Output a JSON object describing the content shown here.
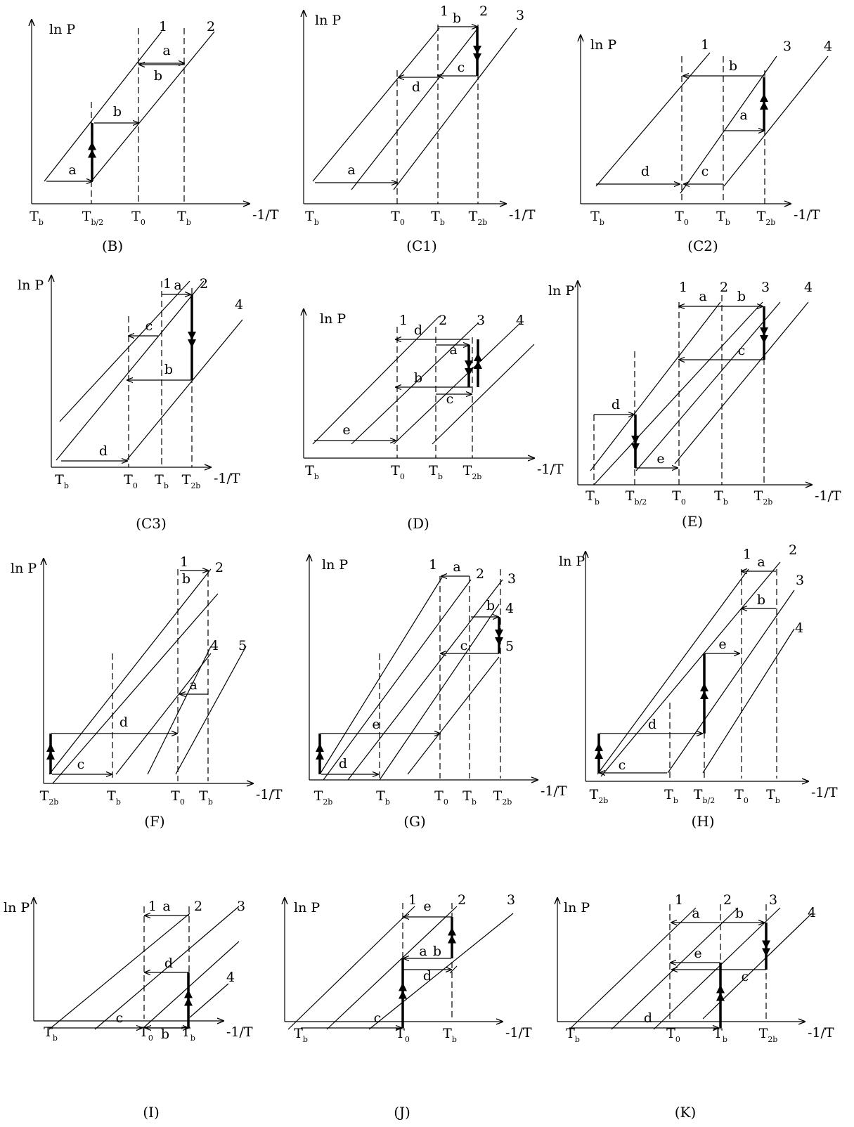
{
  "axis": {
    "y_label": "ln P",
    "x_label": "-1/T"
  },
  "panels": [
    {
      "id": "B",
      "caption": "(B)",
      "ticks": [
        {
          "main": "T",
          "sub": "b"
        },
        {
          "main": "T",
          "sub": "b/2"
        },
        {
          "main": "T",
          "sub": "0"
        },
        {
          "main": "T",
          "sub": "b"
        }
      ],
      "line_labels": [
        "1",
        "2"
      ],
      "arrow_labels": [
        "a",
        "b",
        "b",
        "a"
      ]
    },
    {
      "id": "C1",
      "caption": "(C1)",
      "ticks": [
        {
          "main": "T",
          "sub": "b"
        },
        {
          "main": "T",
          "sub": "0"
        },
        {
          "main": "T",
          "sub": "b"
        },
        {
          "main": "T",
          "sub": "2b"
        }
      ],
      "line_labels": [
        "1",
        "2",
        "3"
      ],
      "arrow_labels": [
        "a",
        "b",
        "c",
        "d"
      ]
    },
    {
      "id": "C2",
      "caption": "(C2)",
      "ticks": [
        {
          "main": "T",
          "sub": "b"
        },
        {
          "main": "T",
          "sub": "0"
        },
        {
          "main": "T",
          "sub": "b"
        },
        {
          "main": "T",
          "sub": "2b"
        }
      ],
      "line_labels": [
        "1",
        "3",
        "4"
      ],
      "arrow_labels": [
        "b",
        "a",
        "c",
        "d"
      ]
    },
    {
      "id": "C3",
      "caption": "(C3)",
      "ticks": [
        {
          "main": "T",
          "sub": "b"
        },
        {
          "main": "T",
          "sub": "0"
        },
        {
          "main": "T",
          "sub": "b"
        },
        {
          "main": "T",
          "sub": "2b"
        }
      ],
      "line_labels": [
        "1",
        "2",
        "4"
      ],
      "arrow_labels": [
        "a",
        "c",
        "b",
        "d"
      ]
    },
    {
      "id": "D",
      "caption": "(D)",
      "ticks": [
        {
          "main": "T",
          "sub": "b"
        },
        {
          "main": "T",
          "sub": "0"
        },
        {
          "main": "T",
          "sub": "b"
        },
        {
          "main": "T",
          "sub": "2b"
        }
      ],
      "line_labels": [
        "1",
        "2",
        "3",
        "4"
      ],
      "arrow_labels": [
        "d",
        "a",
        "b",
        "c",
        "e"
      ]
    },
    {
      "id": "E",
      "caption": "(E)",
      "ticks": [
        {
          "main": "T",
          "sub": "b"
        },
        {
          "main": "T",
          "sub": "b/2"
        },
        {
          "main": "T",
          "sub": "0"
        },
        {
          "main": "T",
          "sub": "b"
        },
        {
          "main": "T",
          "sub": "2b"
        }
      ],
      "line_labels": [
        "1",
        "2",
        "3",
        "4"
      ],
      "arrow_labels": [
        "a",
        "b",
        "c",
        "d",
        "e"
      ]
    },
    {
      "id": "F",
      "caption": "(F)",
      "ticks": [
        {
          "main": "T",
          "sub": "2b"
        },
        {
          "main": "T",
          "sub": "b"
        },
        {
          "main": "T",
          "sub": "0"
        },
        {
          "main": "T",
          "sub": "b"
        }
      ],
      "line_labels": [
        "1",
        "2",
        "4",
        "5"
      ],
      "arrow_labels": [
        "b",
        "a",
        "d",
        "c"
      ]
    },
    {
      "id": "G",
      "caption": "(G)",
      "ticks": [
        {
          "main": "T",
          "sub": "2b"
        },
        {
          "main": "T",
          "sub": "b"
        },
        {
          "main": "T",
          "sub": "0"
        },
        {
          "main": "T",
          "sub": "b"
        },
        {
          "main": "T",
          "sub": "2b"
        }
      ],
      "line_labels": [
        "1",
        "2",
        "3",
        "4",
        "5"
      ],
      "arrow_labels": [
        "a",
        "b",
        "c",
        "e",
        "d"
      ]
    },
    {
      "id": "H",
      "caption": "(H)",
      "ticks": [
        {
          "main": "T",
          "sub": "2b"
        },
        {
          "main": "T",
          "sub": "b"
        },
        {
          "main": "T",
          "sub": "b/2"
        },
        {
          "main": "T",
          "sub": "0"
        },
        {
          "main": "T",
          "sub": "b"
        }
      ],
      "line_labels": [
        "1",
        "2",
        "3",
        "4"
      ],
      "arrow_labels": [
        "a",
        "b",
        "e",
        "d",
        "c"
      ]
    },
    {
      "id": "I",
      "caption": "(I)",
      "ticks": [
        {
          "main": "T",
          "sub": "b"
        },
        {
          "main": "T",
          "sub": "0"
        },
        {
          "main": "T",
          "sub": "b"
        }
      ],
      "line_labels": [
        "1",
        "2",
        "3",
        "4"
      ],
      "arrow_labels": [
        "a",
        "d",
        "c",
        "b"
      ]
    },
    {
      "id": "J",
      "caption": "(J)",
      "ticks": [
        {
          "main": "T",
          "sub": "b"
        },
        {
          "main": "T",
          "sub": "0"
        },
        {
          "main": "T",
          "sub": "b"
        }
      ],
      "line_labels": [
        "1",
        "2",
        "3"
      ],
      "arrow_labels": [
        "e",
        "a",
        "b",
        "d",
        "c"
      ]
    },
    {
      "id": "K",
      "caption": "(K)",
      "ticks": [
        {
          "main": "T",
          "sub": "b"
        },
        {
          "main": "T",
          "sub": "0"
        },
        {
          "main": "T",
          "sub": "b"
        },
        {
          "main": "T",
          "sub": "2b"
        }
      ],
      "line_labels": [
        "1",
        "2",
        "3",
        "4"
      ],
      "arrow_labels": [
        "a",
        "b",
        "e",
        "c",
        "d"
      ]
    }
  ]
}
